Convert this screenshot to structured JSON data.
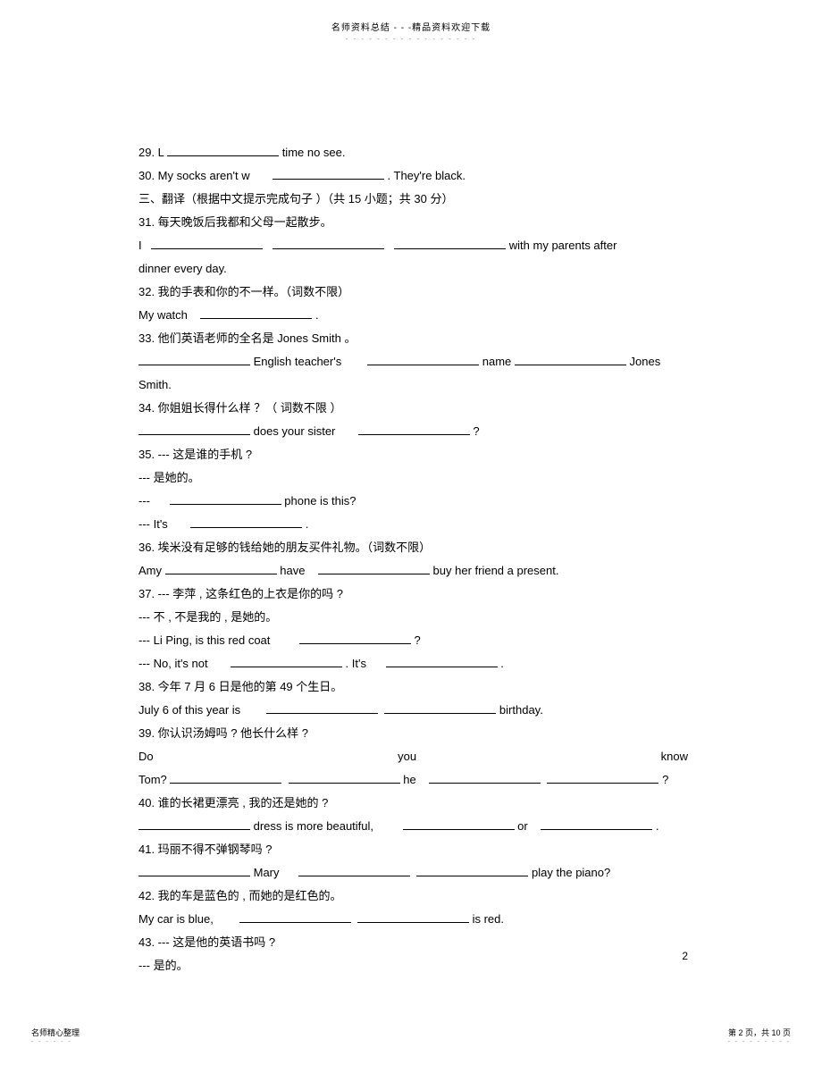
{
  "header": {
    "text": "名师资料总结 - - -精品资料欢迎下载",
    "dots": "- - - - - - - - - - - - - - - - -"
  },
  "q29": {
    "prefix": "29. L",
    "suffix": " time no see."
  },
  "q30": {
    "prefix": "30. My socks aren't w",
    "suffix": ". They're black."
  },
  "section3": {
    "title": "三、翻译（根据中文提示完成句子  ）（共 15 小题；共  30 分）"
  },
  "q31": {
    "prompt": "31.  每天晚饭后我都和父母一起散步。",
    "line_start": "I",
    "line_end": " with my parents after",
    "cont": "dinner every day."
  },
  "q32": {
    "prompt": "32.  我的手表和你的不一样。（词数不限）",
    "line_start": "My watch",
    "suffix": "."
  },
  "q33": {
    "prompt": "33.  他们英语老师的全名是    Jones Smith 。",
    "mid1": " English teacher's",
    "mid2": " name",
    "end": " Jones",
    "cont": "Smith."
  },
  "q34": {
    "prompt": "34.  你姐姐长得什么样  ？（ 词数不限 ）",
    "mid": " does your sister",
    "end": "?"
  },
  "q35": {
    "prompt1": "35. ---    这是谁的手机  ?",
    "prompt2": "---    是她的。",
    "line1_start": "---",
    "line1_end": " phone is this?",
    "line2_start": "--- It's",
    "line2_end": "."
  },
  "q36": {
    "prompt": "36.  埃米没有足够的钱给她的朋友买件礼物。（词数不限）",
    "start": "Amy ",
    "mid": " have",
    "end": " buy her friend a present."
  },
  "q37": {
    "prompt1": "37. ---     李萍 , 这条红色的上衣是你的吗   ?",
    "prompt2": "---    不 , 不是我的  , 是她的。",
    "line1_start": "--- Li Ping, is this red coat",
    "line1_end": "?",
    "line2_start": "--- No, it's not",
    "line2_mid": ". It's",
    "line2_end": "."
  },
  "q38": {
    "prompt": "38.  今年 7 月 6 日是他的第  49 个生日。",
    "start": "July 6 of this year is",
    "end": " birthday."
  },
  "q39": {
    "prompt": "39.  你认识汤姆吗  ? 他长什么样 ?",
    "w1": "Do",
    "w2": "you",
    "w3": "know",
    "line2_start": "Tom?",
    "line2_mid": " he",
    "line2_end": "?"
  },
  "q40": {
    "prompt": "40.  谁的长裙更漂亮  ,  我的还是她的  ?",
    "mid1": " dress is more beautiful,",
    "mid2": " or",
    "end": "."
  },
  "q41": {
    "prompt": "41.  玛丽不得不弹钢琴吗   ?",
    "mid": " Mary",
    "end": " play the piano?"
  },
  "q42": {
    "prompt": "42.  我的车是蓝色的 , 而她的是红色的。",
    "start": "My car is blue,",
    "end": " is red."
  },
  "q43": {
    "prompt1": "43. ---    这是他的英语书吗   ?",
    "prompt2": "---    是的。"
  },
  "pageNumber": "2",
  "footer": {
    "left": "名师精心整理",
    "left_dots": "- - - - - -",
    "right": "第 2 页，共 10 页",
    "right_dots": "- - - - - - - - -"
  }
}
